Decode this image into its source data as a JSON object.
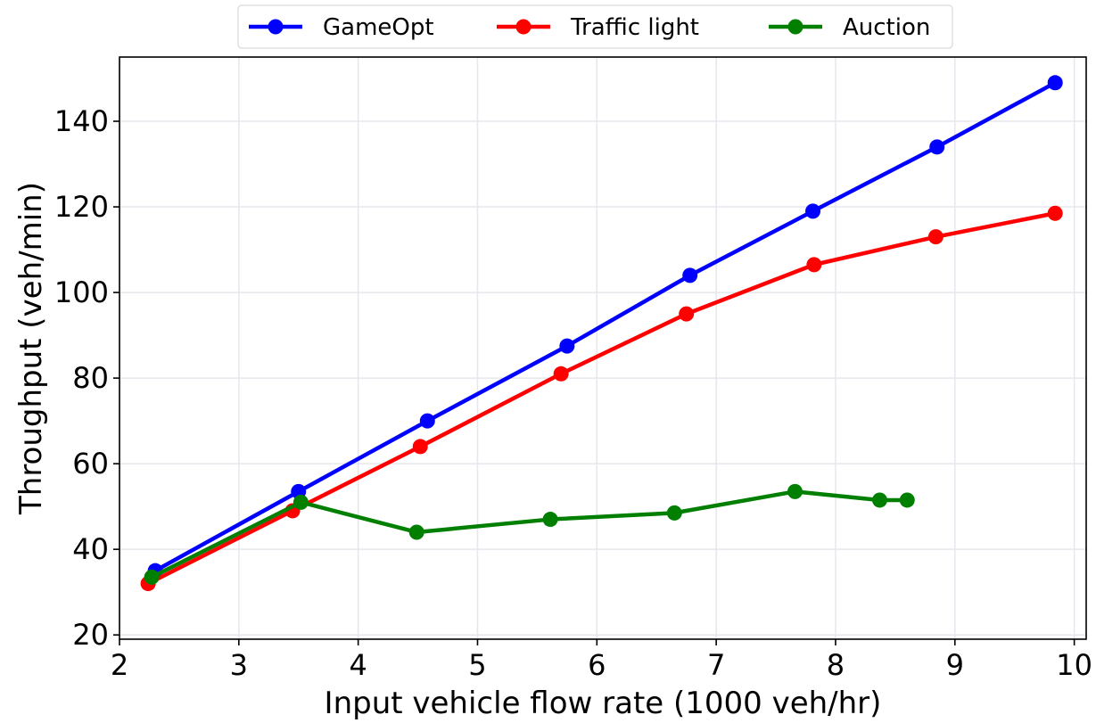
{
  "chart_data": {
    "type": "line",
    "title": "",
    "xlabel": "Input vehicle flow rate (1000 veh/hr)",
    "ylabel": "Throughput (veh/min)",
    "xlim": [
      2,
      10.1
    ],
    "ylim": [
      19,
      155
    ],
    "xticks": [
      "2",
      "3",
      "4",
      "5",
      "6",
      "7",
      "8",
      "9",
      "10"
    ],
    "yticks": [
      "20",
      "40",
      "60",
      "80",
      "100",
      "120",
      "140"
    ],
    "grid": true,
    "legend_position": "top-center",
    "series": [
      {
        "name": "GameOpt",
        "color": "#0000ff",
        "x": [
          2.3,
          3.5,
          4.58,
          5.75,
          6.78,
          7.81,
          8.85,
          9.84
        ],
        "y": [
          35,
          53.5,
          70,
          87.5,
          104,
          119,
          134,
          149
        ]
      },
      {
        "name": "Traffic light",
        "color": "#ff0000",
        "x": [
          2.24,
          3.45,
          4.52,
          5.7,
          6.75,
          7.82,
          8.84,
          9.84
        ],
        "y": [
          32,
          49,
          64,
          81,
          95,
          106.5,
          113,
          118.5
        ]
      },
      {
        "name": "Auction",
        "color": "#007f00",
        "x": [
          2.27,
          3.52,
          4.49,
          5.61,
          6.65,
          7.66,
          8.37,
          8.6
        ],
        "y": [
          33.5,
          51,
          44,
          47,
          48.5,
          53.5,
          51.5,
          51.5
        ]
      }
    ]
  }
}
